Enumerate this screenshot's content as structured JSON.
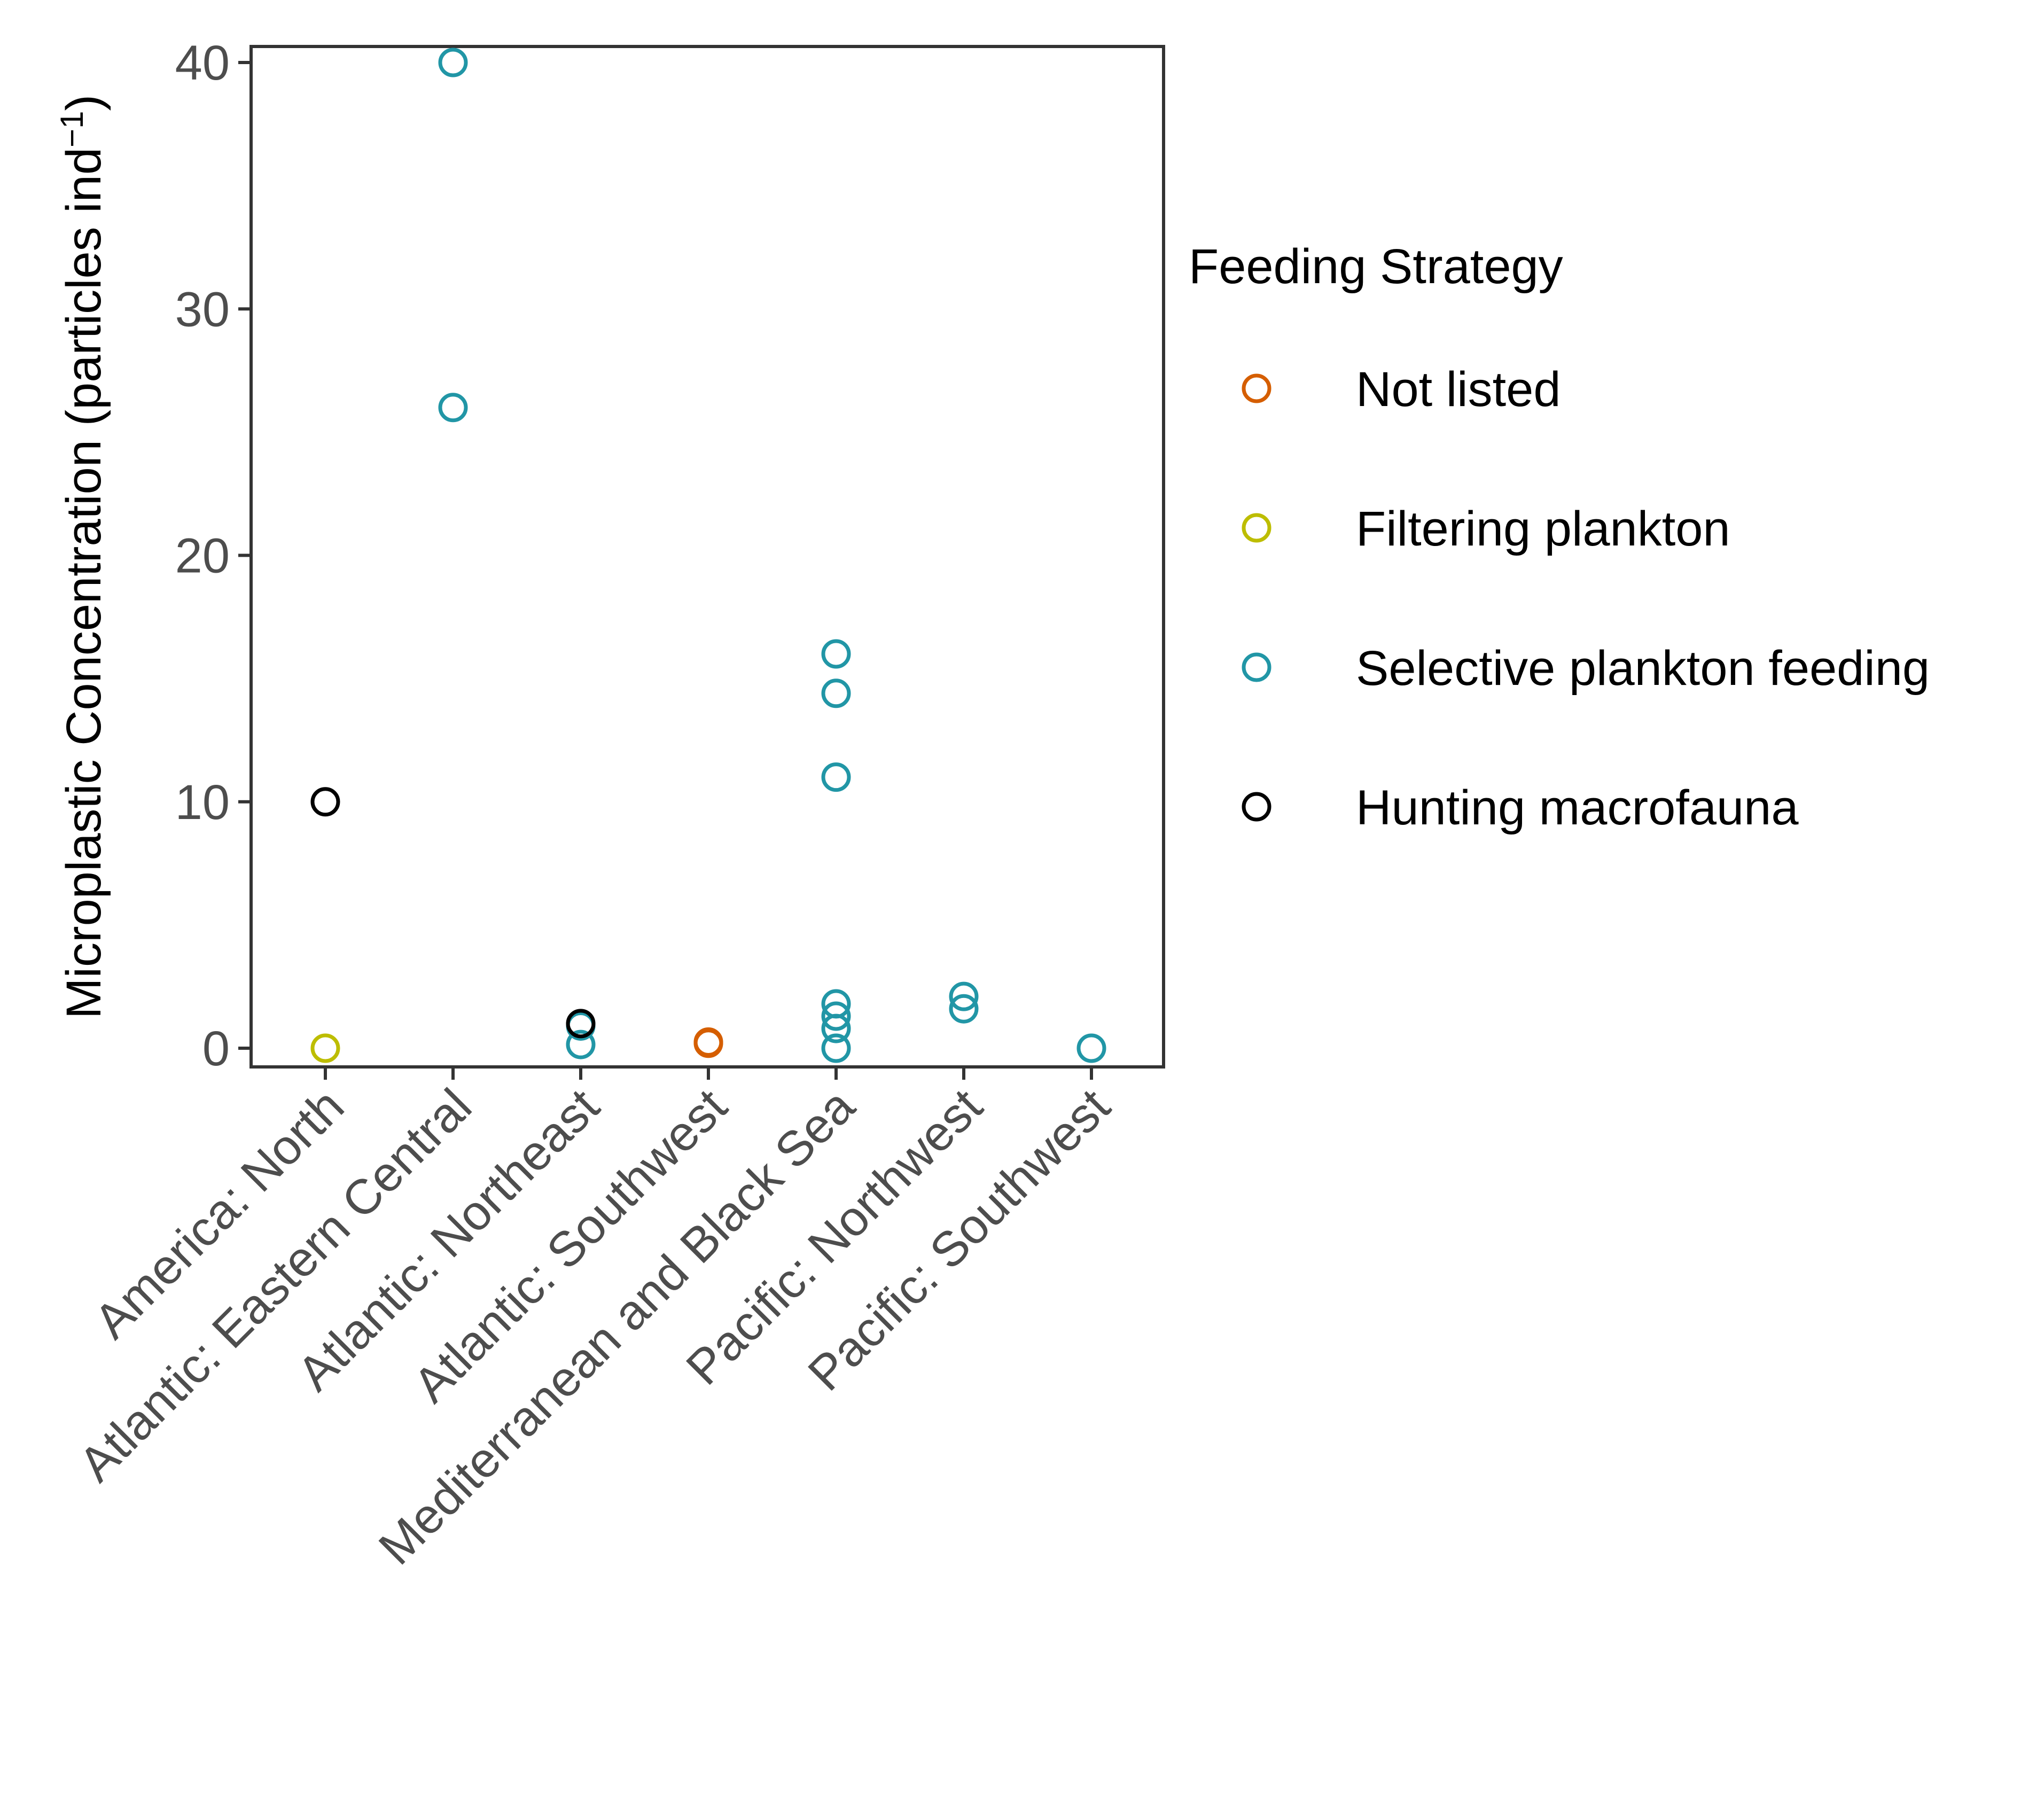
{
  "chart_data": {
    "type": "scatter",
    "title": "",
    "xlabel": "",
    "ylabel": "Microplastic Concentration (particles  ind",
    "ylabel_superscript": "−1",
    "ylabel_suffix": ")",
    "ylim": [
      -0.7,
      41
    ],
    "yticks": [
      0,
      10,
      20,
      30,
      40
    ],
    "categories": [
      "America: North",
      "Atlantic: Eastern Central",
      "Atlantic: Northeast",
      "Atlantic: Southwest",
      "Mediterranean and Black Sea",
      "Pacific: Northwest",
      "Pacific: Southwest"
    ],
    "legend": {
      "title": "Feeding Strategy",
      "placement": "right"
    },
    "grid": false,
    "series": [
      {
        "name": "Not listed",
        "color": "#D55E00",
        "points": [
          {
            "x": "Atlantic: Southwest",
            "y": 0.2
          },
          {
            "x": "Atlantic: Southwest",
            "y": 0.25
          }
        ]
      },
      {
        "name": "Filtering plankton",
        "color": "#BDBD00",
        "points": [
          {
            "x": "America: North",
            "y": 0.0
          }
        ]
      },
      {
        "name": "Selective plankton feeding",
        "color": "#2196A6",
        "points": [
          {
            "x": "Atlantic: Eastern Central",
            "y": 40.0
          },
          {
            "x": "Atlantic: Eastern Central",
            "y": 26.0
          },
          {
            "x": "Atlantic: Northeast",
            "y": 0.9
          },
          {
            "x": "Atlantic: Northeast",
            "y": 0.15
          },
          {
            "x": "Mediterranean and Black Sea",
            "y": 16.0
          },
          {
            "x": "Mediterranean and Black Sea",
            "y": 14.4
          },
          {
            "x": "Mediterranean and Black Sea",
            "y": 11.0
          },
          {
            "x": "Mediterranean and Black Sea",
            "y": 1.8
          },
          {
            "x": "Mediterranean and Black Sea",
            "y": 1.3
          },
          {
            "x": "Mediterranean and Black Sea",
            "y": 0.8
          },
          {
            "x": "Mediterranean and Black Sea",
            "y": 0.0
          },
          {
            "x": "Pacific: Northwest",
            "y": 2.1
          },
          {
            "x": "Pacific: Northwest",
            "y": 1.6
          },
          {
            "x": "Pacific: Southwest",
            "y": 0.0
          }
        ]
      },
      {
        "name": "Hunting macrofauna",
        "color": "#000000",
        "points": [
          {
            "x": "America: North",
            "y": 10.0
          },
          {
            "x": "Atlantic: Northeast",
            "y": 1.0
          }
        ]
      }
    ]
  }
}
